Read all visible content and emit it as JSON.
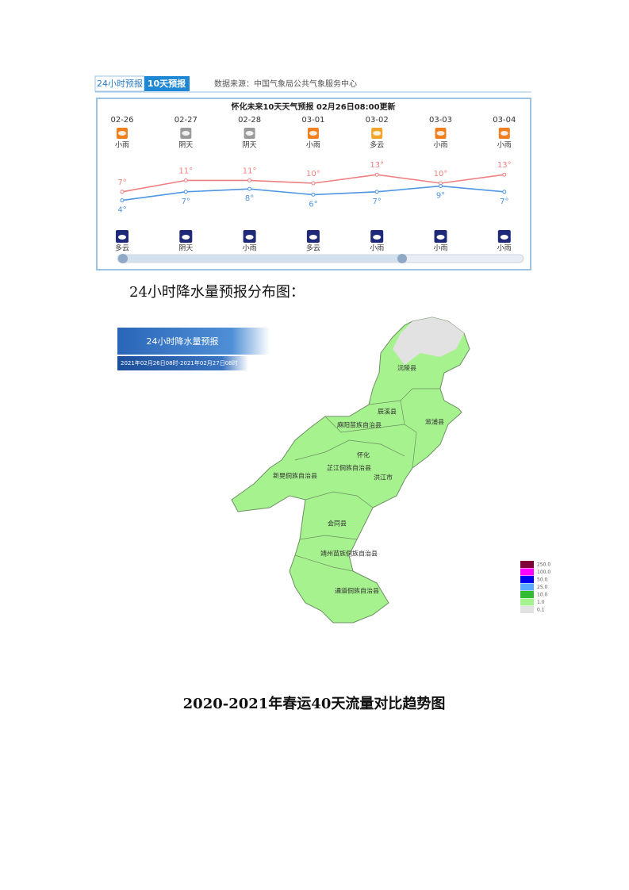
{
  "widget": {
    "tabs": [
      "24小时预报",
      "10天预报"
    ],
    "source": "数据来源：中国气象局公共气象服务中心",
    "title": "怀化未来10天天气预报   02月26日08:00更新",
    "forecast": {
      "dates": [
        "02-26",
        "02-27",
        "02-28",
        "03-01",
        "03-02",
        "03-03",
        "03-04"
      ],
      "day_weather": [
        "小雨",
        "阴天",
        "阴天",
        "小雨",
        "多云",
        "小雨",
        "小雨"
      ],
      "night_weather": [
        "多云",
        "阴天",
        "小雨",
        "多云",
        "小雨",
        "小雨",
        "小雨"
      ],
      "high": {
        "values": [
          7,
          11,
          11,
          10,
          13,
          10,
          13
        ],
        "value_labels": [
          "7°",
          "11°",
          "11°",
          "10°",
          "13°",
          "10°",
          "13°"
        ]
      },
      "low": {
        "values": [
          4,
          7,
          8,
          6,
          7,
          9,
          7
        ],
        "value_labels": [
          "4°",
          "7°",
          "8°",
          "6°",
          "7°",
          "9°",
          "7°"
        ]
      }
    }
  },
  "caption": "24小时降水量预报分布图：",
  "map": {
    "title": "24小时降水量预报",
    "subtitle": "2021年02月26日08时-2021年02月27日08时",
    "counties": [
      "沅陵县",
      "辰溪县",
      "溆浦县",
      "麻阳苗族自治县",
      "怀化",
      "芷江侗族自治县",
      "新晃侗族自治县",
      "洪江市",
      "会同县",
      "靖州苗族侗族自治县",
      "通道侗族自治县"
    ],
    "legend": [
      {
        "label": "250.0",
        "color": "#80003a"
      },
      {
        "label": "100.0",
        "color": "#ff00ff"
      },
      {
        "label": "50.0",
        "color": "#0000ee"
      },
      {
        "label": "25.0",
        "color": "#5aaaff"
      },
      {
        "label": "10.0",
        "color": "#33bb33"
      },
      {
        "label": "1.0",
        "color": "#a6f28e"
      },
      {
        "label": "0.1",
        "color": "#e2e2e2"
      }
    ]
  },
  "heading": "2020-2021年春运40天流量对比趋势图"
}
